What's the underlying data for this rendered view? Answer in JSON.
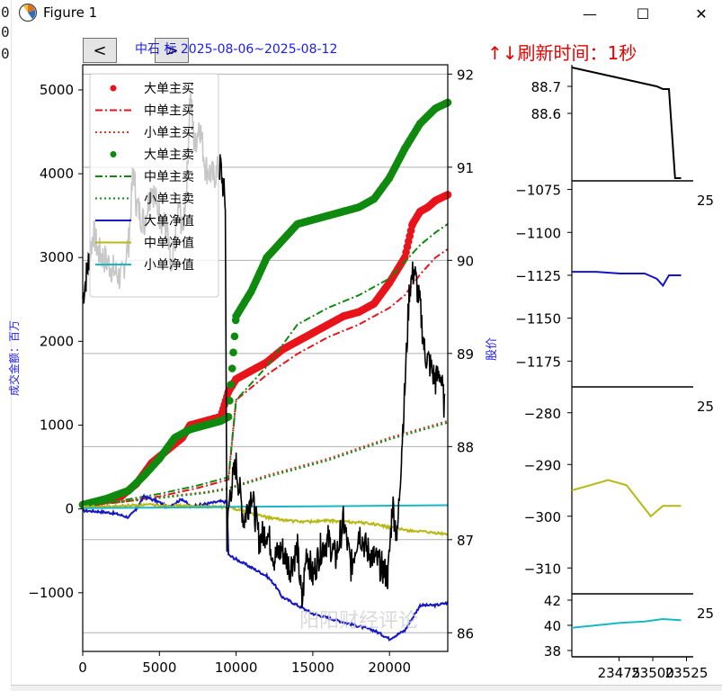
{
  "window": {
    "title": "Figure 1",
    "minimize_symbol": "—",
    "maximize_symbol": "☐",
    "close_symbol": "✕"
  },
  "left_strip": {
    "chars": [
      "0",
      "0",
      "0"
    ]
  },
  "nav": {
    "prev_symbol": "<",
    "next_symbol": ">"
  },
  "header": {
    "title": "中石 标 2025-08-06~2025-08-12",
    "refresh_label": "↑↓刷新时间：1秒"
  },
  "watermark": "阳阳财经评论",
  "colors": {
    "big_buy": "#e8141b",
    "big_sell": "#0f8a0f",
    "big_net": "#1414c8",
    "mid_net": "#b8b814",
    "small_net": "#17b8c4",
    "price": "#000000",
    "title": "#1a1aff",
    "refresh": "#e60000"
  },
  "chart_data": [
    {
      "type": "line",
      "xlim": [
        0,
        23800
      ],
      "ylim": [
        -1700,
        5300
      ],
      "y2lim": [
        85.8,
        92.1
      ],
      "xticks": [
        0,
        5000,
        10000,
        15000,
        20000
      ],
      "yticks": [
        -1000,
        0,
        1000,
        2000,
        3000,
        4000,
        5000
      ],
      "y2ticks": [
        86,
        87,
        88,
        89,
        90,
        91,
        92
      ],
      "ylabel": "成交金额：百万",
      "y2label": "股价",
      "grid": "horizontal",
      "legend_position": "upper-left",
      "legend": [
        "大单主买",
        "中单主买",
        "小单主买",
        "大单主卖",
        "中单主卖",
        "小单主卖",
        "大单净值",
        "中单净值",
        "小单净值"
      ],
      "series": [
        {
          "name": "大单主买",
          "axis": "left",
          "style": "dots",
          "color": "#e8141b",
          "x": [
            0,
            1000,
            2500,
            3500,
            4500,
            5500,
            6500,
            7000,
            8000,
            9000,
            9500,
            10000,
            11000,
            12000,
            13000,
            14000,
            15000,
            16000,
            17000,
            18000,
            19000,
            20000,
            21000,
            21500,
            22000,
            22500,
            23000,
            23800
          ],
          "y": [
            50,
            80,
            150,
            300,
            550,
            700,
            850,
            1000,
            1050,
            1100,
            1400,
            1550,
            1650,
            1750,
            1900,
            2000,
            2100,
            2200,
            2300,
            2350,
            2450,
            2700,
            3000,
            3400,
            3550,
            3600,
            3680,
            3750
          ]
        },
        {
          "name": "中单主买",
          "axis": "left",
          "style": "dashdot",
          "color": "#e8141b",
          "x": [
            0,
            2500,
            5000,
            7500,
            9500,
            10000,
            12000,
            14000,
            16000,
            18000,
            20000,
            21000,
            22000,
            23000,
            23800
          ],
          "y": [
            40,
            80,
            150,
            250,
            350,
            1300,
            1600,
            1850,
            2050,
            2200,
            2400,
            2550,
            2800,
            3000,
            3100
          ]
        },
        {
          "name": "小单主买",
          "axis": "left",
          "style": "dotted",
          "color": "#d23c28",
          "x": [
            0,
            4000,
            8000,
            9500,
            12000,
            16000,
            20000,
            23800
          ],
          "y": [
            50,
            120,
            200,
            250,
            400,
            600,
            850,
            1050
          ]
        },
        {
          "name": "大单主卖",
          "axis": "left",
          "style": "dots",
          "color": "#0f8a0f",
          "x": [
            0,
            1500,
            3000,
            4000,
            5000,
            6000,
            7000,
            8000,
            9000,
            9500,
            10000,
            11000,
            12000,
            13000,
            14000,
            15000,
            16000,
            17000,
            18000,
            19000,
            20000,
            21000,
            22000,
            23000,
            23800
          ],
          "y": [
            50,
            120,
            220,
            400,
            600,
            850,
            950,
            1000,
            1050,
            1100,
            2300,
            2600,
            3000,
            3200,
            3400,
            3450,
            3500,
            3550,
            3600,
            3700,
            3950,
            4300,
            4600,
            4780,
            4850
          ]
        },
        {
          "name": "中单主卖",
          "axis": "left",
          "style": "dashdot",
          "color": "#0f8a0f",
          "x": [
            0,
            2500,
            5000,
            7500,
            9500,
            10000,
            12000,
            14000,
            16000,
            18000,
            20000,
            21000,
            22000,
            23000,
            23800
          ],
          "y": [
            40,
            100,
            180,
            280,
            380,
            1300,
            1700,
            2200,
            2400,
            2550,
            2750,
            2950,
            3150,
            3300,
            3400
          ]
        },
        {
          "name": "小单主卖",
          "axis": "left",
          "style": "dotted",
          "color": "#0f8a0f",
          "x": [
            0,
            4000,
            8000,
            9500,
            12000,
            16000,
            20000,
            23800
          ],
          "y": [
            40,
            110,
            190,
            240,
            380,
            580,
            830,
            1030
          ]
        },
        {
          "name": "大单净值",
          "axis": "left",
          "style": "solid",
          "color": "#1414c8",
          "x": [
            0,
            1000,
            2000,
            3000,
            3500,
            4000,
            5000,
            5500,
            6500,
            7000,
            8000,
            9000,
            9400,
            9500,
            10000,
            11000,
            12000,
            12500,
            13000,
            14000,
            15000,
            16000,
            17000,
            18000,
            19000,
            19500,
            20000,
            20500,
            21000,
            21500,
            22000,
            23000,
            23800
          ],
          "y": [
            -20,
            -30,
            -50,
            -100,
            0,
            150,
            80,
            20,
            120,
            30,
            60,
            90,
            80,
            -550,
            -600,
            -700,
            -800,
            -900,
            -1050,
            -1150,
            -1250,
            -1300,
            -1350,
            -1400,
            -1450,
            -1500,
            -1550,
            -1500,
            -1450,
            -1300,
            -1150,
            -1150,
            -1120
          ]
        },
        {
          "name": "中单净值",
          "axis": "left",
          "style": "solid",
          "color": "#b8b814",
          "x": [
            0,
            2000,
            4000,
            6000,
            8000,
            9500,
            10000,
            11000,
            12000,
            13000,
            14000,
            15000,
            16000,
            17000,
            18000,
            19000,
            20000,
            21000,
            22000,
            23000,
            23800
          ],
          "y": [
            20,
            30,
            50,
            40,
            30,
            20,
            0,
            -50,
            -100,
            -130,
            -150,
            -150,
            -140,
            -150,
            -160,
            -180,
            -220,
            -250,
            -270,
            -290,
            -300
          ]
        },
        {
          "name": "小单净值",
          "axis": "left",
          "style": "solid",
          "color": "#17b8c4",
          "x": [
            0,
            4000,
            8000,
            10000,
            14000,
            18000,
            21000,
            23800
          ],
          "y": [
            10,
            15,
            20,
            25,
            30,
            35,
            40,
            45
          ]
        },
        {
          "name": "股价",
          "axis": "right",
          "style": "solid",
          "color": "#000000",
          "x": [
            0,
            300,
            700,
            1000,
            1500,
            2000,
            2500,
            3000,
            3300,
            3500,
            4000,
            4500,
            5000,
            5500,
            5800,
            6000,
            6300,
            6500,
            6800,
            7000,
            7300,
            7600,
            8000,
            8500,
            9000,
            9300,
            9400,
            9600,
            10000,
            10500,
            11000,
            11500,
            12000,
            12500,
            13000,
            13500,
            14000,
            14300,
            14600,
            15000,
            15500,
            16000,
            16500,
            17000,
            17500,
            18000,
            18500,
            19000,
            19500,
            19900,
            20200,
            20500,
            20800,
            21000,
            21300,
            21600,
            22000,
            22300,
            22600,
            23000,
            23300,
            23600
          ],
          "y": [
            89.6,
            89.9,
            90.3,
            90.1,
            90.0,
            89.9,
            89.8,
            90.2,
            91.0,
            90.6,
            90.4,
            90.8,
            90.5,
            90.3,
            89.8,
            90.2,
            90.6,
            90.3,
            90.9,
            91.8,
            91.2,
            91.5,
            91.0,
            90.9,
            91.0,
            90.6,
            87.0,
            87.5,
            87.8,
            87.2,
            87.5,
            87.0,
            87.1,
            86.8,
            86.9,
            86.7,
            86.9,
            86.3,
            86.9,
            86.6,
            86.9,
            87.0,
            86.8,
            87.2,
            86.7,
            87.1,
            86.9,
            86.8,
            86.7,
            86.6,
            87.4,
            87.0,
            88.0,
            88.6,
            89.7,
            89.9,
            89.5,
            89.0,
            88.9,
            88.7,
            88.8,
            88.4
          ]
        }
      ]
    },
    {
      "type": "line",
      "panel": "price-zoom",
      "yticks": [
        88.6,
        88.7
      ],
      "ylim": [
        88.35,
        88.78
      ],
      "series": [
        {
          "color": "#000000",
          "x": [
            0,
            0.1,
            0.2,
            0.3,
            0.4,
            0.5,
            0.6,
            0.7,
            0.75,
            0.8,
            0.85,
            0.9
          ],
          "y": [
            88.77,
            88.76,
            88.75,
            88.74,
            88.73,
            88.72,
            88.71,
            88.7,
            88.69,
            88.69,
            88.36,
            88.36
          ]
        }
      ]
    },
    {
      "type": "line",
      "panel": "big-net-zoom",
      "yticks": [
        -1075,
        -1100,
        -1125,
        -1150,
        -1175
      ],
      "ylim": [
        -1190,
        -1070
      ],
      "right_label": "25",
      "series": [
        {
          "color": "#1414c8",
          "x": [
            0,
            0.2,
            0.4,
            0.6,
            0.7,
            0.75,
            0.8,
            0.9
          ],
          "y": [
            -1123,
            -1123,
            -1124,
            -1124,
            -1127,
            -1131,
            -1125,
            -1125
          ]
        }
      ]
    },
    {
      "type": "line",
      "panel": "mid-net-zoom",
      "yticks": [
        -280,
        -290,
        -300,
        -310
      ],
      "ylim": [
        -315,
        -275
      ],
      "right_label": "25",
      "series": [
        {
          "color": "#b8b814",
          "x": [
            0,
            0.15,
            0.3,
            0.45,
            0.55,
            0.65,
            0.75,
            0.85,
            0.9
          ],
          "y": [
            -295,
            -294,
            -293,
            -294,
            -297,
            -300,
            -298,
            -298,
            -298
          ]
        }
      ]
    },
    {
      "type": "line",
      "panel": "small-net-zoom",
      "yticks": [
        42,
        40,
        38
      ],
      "ylim": [
        37.5,
        42.5
      ],
      "right_label": "25",
      "xticks": [
        23475,
        23500,
        23525
      ],
      "xlim": [
        23440,
        23530
      ],
      "series": [
        {
          "color": "#17b8c4",
          "x": [
            0,
            0.2,
            0.4,
            0.6,
            0.75,
            0.9
          ],
          "y": [
            39.8,
            40.0,
            40.2,
            40.3,
            40.5,
            40.4
          ]
        }
      ]
    }
  ]
}
